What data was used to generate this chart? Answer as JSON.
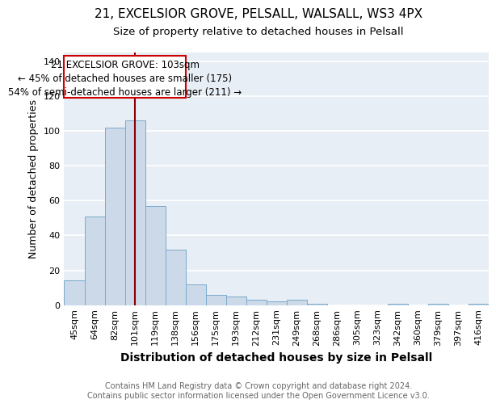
{
  "title1": "21, EXCELSIOR GROVE, PELSALL, WALSALL, WS3 4PX",
  "title2": "Size of property relative to detached houses in Pelsall",
  "xlabel": "Distribution of detached houses by size in Pelsall",
  "ylabel": "Number of detached properties",
  "categories": [
    "45sqm",
    "64sqm",
    "82sqm",
    "101sqm",
    "119sqm",
    "138sqm",
    "156sqm",
    "175sqm",
    "193sqm",
    "212sqm",
    "231sqm",
    "249sqm",
    "268sqm",
    "286sqm",
    "305sqm",
    "323sqm",
    "342sqm",
    "360sqm",
    "379sqm",
    "397sqm",
    "416sqm"
  ],
  "values": [
    14,
    51,
    102,
    106,
    57,
    32,
    12,
    6,
    5,
    3,
    2,
    3,
    1,
    0,
    0,
    0,
    1,
    0,
    1,
    0,
    1
  ],
  "bar_color": "#ccd9e8",
  "bar_edge_color": "#7aabcc",
  "background_color": "#ffffff",
  "plot_bg_color": "#e8eef5",
  "grid_color": "#ffffff",
  "red_line_x": 3.0,
  "annotation_text_line1": "21 EXCELSIOR GROVE: 103sqm",
  "annotation_text_line2": "← 45% of detached houses are smaller (175)",
  "annotation_text_line3": "54% of semi-detached houses are larger (211) →",
  "annotation_box_color": "#ffffff",
  "annotation_box_edge": "#cc0000",
  "ylim": [
    0,
    145
  ],
  "yticks": [
    0,
    20,
    40,
    60,
    80,
    100,
    120,
    140
  ],
  "footer_line1": "Contains HM Land Registry data © Crown copyright and database right 2024.",
  "footer_line2": "Contains public sector information licensed under the Open Government Licence v3.0.",
  "title1_fontsize": 11,
  "title2_fontsize": 9.5,
  "xlabel_fontsize": 10,
  "ylabel_fontsize": 9,
  "tick_fontsize": 8,
  "annotation_fontsize": 8.5,
  "footer_fontsize": 7
}
